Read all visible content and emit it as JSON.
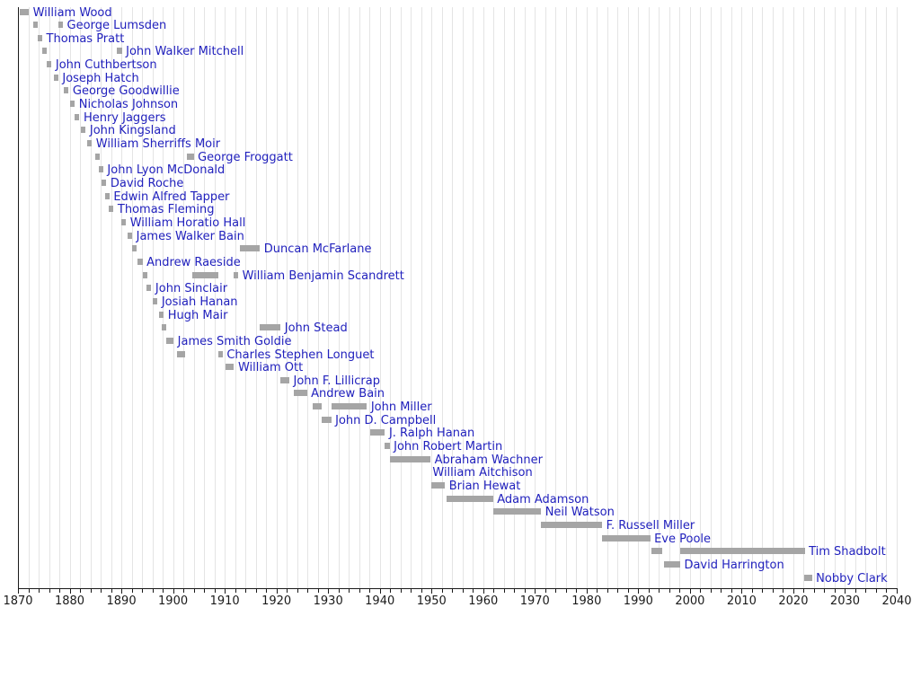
{
  "chart_data": {
    "type": "timeline",
    "title": "",
    "xlabel": "",
    "ylabel": "",
    "x_axis": {
      "min": 1870,
      "max": 2040,
      "major_tick_interval": 10,
      "minor_tick_interval": 2,
      "grid": "vertical, every 2 years",
      "tick_labels": [
        "1870",
        "1880",
        "1890",
        "1900",
        "1910",
        "1920",
        "1930",
        "1940",
        "1950",
        "1960",
        "1970",
        "1980",
        "1990",
        "2000",
        "2010",
        "2020",
        "2030",
        "2040"
      ]
    },
    "legend": {
      "shown": false
    },
    "colors": {
      "bar": "#a5a5a5",
      "label": "#2121bd",
      "axis": "#1a1a1a",
      "grid": "#e4e4e4",
      "background": "#ffffff"
    },
    "rows": [
      {
        "name": "William Wood",
        "terms": [
          [
            1870.4,
            1872.1
          ]
        ]
      },
      {
        "name": "George Lumsden",
        "terms": [
          [
            1872.9,
            1873.8
          ],
          [
            1877.8,
            1878.7
          ]
        ]
      },
      {
        "name": "Thomas Pratt",
        "terms": [
          [
            1873.8,
            1874.7
          ]
        ]
      },
      {
        "name": "John Walker Mitchell",
        "terms": [
          [
            1874.7,
            1875.6
          ],
          [
            1889.2,
            1890.1
          ]
        ]
      },
      {
        "name": "John Cuthbertson",
        "terms": [
          [
            1875.6,
            1876.5
          ]
        ]
      },
      {
        "name": "Joseph Hatch",
        "terms": [
          [
            1876.9,
            1877.8
          ]
        ]
      },
      {
        "name": "George Goodwillie",
        "terms": [
          [
            1878.9,
            1879.8
          ]
        ]
      },
      {
        "name": "Nicholas Johnson",
        "terms": [
          [
            1880.1,
            1881.0
          ]
        ]
      },
      {
        "name": "Henry Jaggers",
        "terms": [
          [
            1881.0,
            1881.9
          ]
        ]
      },
      {
        "name": "John Kingsland",
        "terms": [
          [
            1882.2,
            1883.1
          ]
        ]
      },
      {
        "name": "William Sherriffs Moir",
        "terms": [
          [
            1883.4,
            1884.3
          ]
        ]
      },
      {
        "name": "George Froggatt",
        "terms": [
          [
            1884.9,
            1885.8
          ],
          [
            1902.7,
            1904.0
          ]
        ]
      },
      {
        "name": "John Lyon McDonald",
        "terms": [
          [
            1885.6,
            1886.5
          ]
        ]
      },
      {
        "name": "David Roche",
        "terms": [
          [
            1886.2,
            1887.1
          ]
        ]
      },
      {
        "name": "Edwin Alfred Tapper",
        "terms": [
          [
            1886.8,
            1887.7
          ]
        ]
      },
      {
        "name": "Thomas Fleming",
        "terms": [
          [
            1887.6,
            1888.5
          ]
        ]
      },
      {
        "name": "William Horatio Hall",
        "terms": [
          [
            1890.0,
            1890.9
          ]
        ]
      },
      {
        "name": "James Walker Bain",
        "terms": [
          [
            1891.2,
            1892.1
          ]
        ]
      },
      {
        "name": "Duncan McFarlane",
        "terms": [
          [
            1892.1,
            1893.0
          ],
          [
            1913.0,
            1916.8
          ]
        ]
      },
      {
        "name": "Andrew Raeside",
        "terms": [
          [
            1893.2,
            1894.1
          ]
        ]
      },
      {
        "name": "William Benjamin Scandrett",
        "terms": [
          [
            1894.1,
            1895.0
          ],
          [
            1903.8,
            1908.7
          ],
          [
            1911.7,
            1912.6
          ]
        ]
      },
      {
        "name": "John Sinclair",
        "terms": [
          [
            1894.9,
            1895.8
          ]
        ]
      },
      {
        "name": "Josiah Hanan",
        "terms": [
          [
            1896.1,
            1897.0
          ]
        ]
      },
      {
        "name": "Hugh Mair",
        "terms": [
          [
            1897.3,
            1898.2
          ]
        ]
      },
      {
        "name": "John Stead",
        "terms": [
          [
            1897.8,
            1898.7
          ],
          [
            1916.8,
            1920.8
          ]
        ]
      },
      {
        "name": "James Smith Goldie",
        "terms": [
          [
            1898.7,
            1900.1
          ]
        ]
      },
      {
        "name": "Charles Stephen Longuet",
        "terms": [
          [
            1900.7,
            1902.4
          ],
          [
            1908.7,
            1909.6
          ]
        ]
      },
      {
        "name": "William Ott",
        "terms": [
          [
            1910.1,
            1911.8
          ]
        ]
      },
      {
        "name": "John F. Lillicrap",
        "terms": [
          [
            1920.8,
            1922.5
          ]
        ]
      },
      {
        "name": "Andrew Bain",
        "terms": [
          [
            1923.3,
            1925.9
          ]
        ]
      },
      {
        "name": "John Miller",
        "terms": [
          [
            1927.1,
            1928.8
          ],
          [
            1930.6,
            1937.5
          ]
        ]
      },
      {
        "name": "John D. Campbell",
        "terms": [
          [
            1928.8,
            1930.6
          ]
        ]
      },
      {
        "name": "J. Ralph Hanan",
        "terms": [
          [
            1938.1,
            1941.0
          ]
        ]
      },
      {
        "name": "John Robert Martin",
        "terms": [
          [
            1941.0,
            1941.9
          ]
        ]
      },
      {
        "name": "Abraham Wachner",
        "terms": [
          [
            1941.9,
            1949.8
          ]
        ]
      },
      {
        "name": "William Aitchison",
        "terms": [],
        "label_year": 1950.2
      },
      {
        "name": "Brian Hewat",
        "terms": [
          [
            1950.0,
            1952.6
          ]
        ]
      },
      {
        "name": "Adam Adamson",
        "terms": [
          [
            1953.0,
            1961.9
          ]
        ]
      },
      {
        "name": "Neil Watson",
        "terms": [
          [
            1961.9,
            1971.2
          ]
        ]
      },
      {
        "name": "F. Russell Miller",
        "terms": [
          [
            1971.2,
            1983.0
          ]
        ]
      },
      {
        "name": "Eve Poole",
        "terms": [
          [
            1983.0,
            1992.3
          ]
        ]
      },
      {
        "name": "Tim Shadbolt",
        "terms": [
          [
            1992.6,
            1994.7
          ],
          [
            1998.1,
            2022.2
          ]
        ]
      },
      {
        "name": "David Harrington",
        "terms": [
          [
            1995.0,
            1998.1
          ]
        ]
      },
      {
        "name": "Nobby Clark",
        "terms": [
          [
            2022.1,
            2023.6
          ]
        ]
      }
    ]
  }
}
